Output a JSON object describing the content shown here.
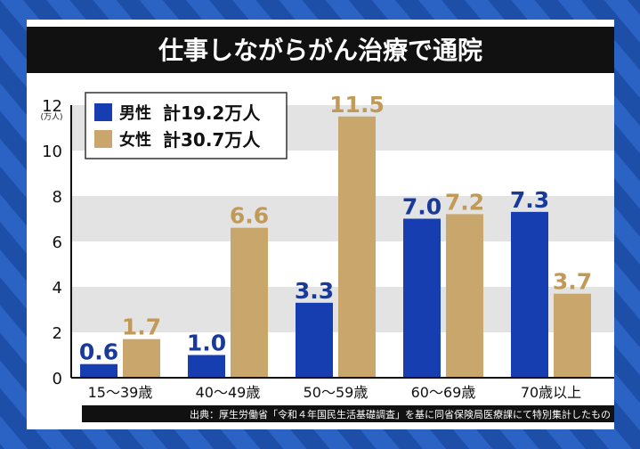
{
  "title": "仕事しながらがん治療で通院",
  "source": "出典：厚生労働省「令和４年国民生活基礎調査」を基に同省保険局医療課にて特別集計したもの",
  "colors": {
    "male": "#173eb0",
    "female": "#c9a66b",
    "male_label": "#1a3a9a",
    "female_label": "#c29a58",
    "title_bg": "#111111",
    "plot_band": "#e3e3e3"
  },
  "chart_data": {
    "type": "bar",
    "title": "仕事しながらがん治療で通院",
    "ylabel": "(万人)",
    "y_ticks": [
      "0",
      "2",
      "4",
      "6",
      "8",
      "10",
      "12"
    ],
    "ylim": [
      0,
      12
    ],
    "categories": [
      "15〜39歳",
      "40〜49歳",
      "50〜59歳",
      "60〜69歳",
      "70歳以上"
    ],
    "series": [
      {
        "name": "男性",
        "total_label": "計19.2万人",
        "values": [
          0.6,
          1.0,
          3.3,
          7.0,
          7.3
        ],
        "labels": [
          "0.6",
          "1.0",
          "3.3",
          "7.0",
          "7.3"
        ]
      },
      {
        "name": "女性",
        "total_label": "計30.7万人",
        "values": [
          1.7,
          6.6,
          11.5,
          7.2,
          3.7
        ],
        "labels": [
          "1.7",
          "6.6",
          "11.5",
          "7.2",
          "3.7"
        ]
      }
    ],
    "legend_position": "top-left",
    "grid": "horizontal bands"
  }
}
